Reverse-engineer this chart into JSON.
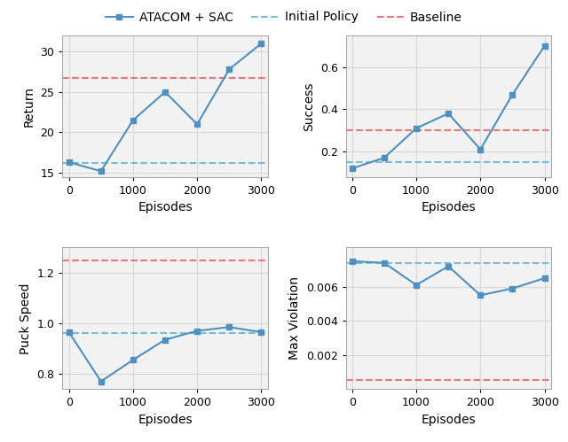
{
  "episodes": [
    0,
    500,
    1000,
    1500,
    2000,
    2500,
    3000
  ],
  "return_values": [
    16.3,
    15.2,
    21.5,
    25.0,
    21.0,
    27.8,
    31.0
  ],
  "return_initial_policy": 16.2,
  "return_baseline": 26.7,
  "return_ylim": [
    14.5,
    32
  ],
  "return_yticks": [
    15,
    20,
    25,
    30
  ],
  "success_values": [
    0.12,
    0.17,
    0.31,
    0.38,
    0.21,
    0.47,
    0.7
  ],
  "success_initial_policy": 0.15,
  "success_baseline": 0.3,
  "success_ylim": [
    0.08,
    0.75
  ],
  "success_yticks": [
    0.2,
    0.4,
    0.6
  ],
  "puck_speed_values": [
    0.965,
    0.77,
    0.855,
    0.935,
    0.97,
    0.985,
    0.965
  ],
  "puck_speed_initial_policy": 0.963,
  "puck_speed_baseline": 1.25,
  "puck_speed_ylim": [
    0.74,
    1.3
  ],
  "puck_speed_yticks": [
    0.8,
    1.0,
    1.2
  ],
  "max_violation_values": [
    0.0075,
    0.0074,
    0.0061,
    0.0072,
    0.0055,
    0.0059,
    0.0065
  ],
  "max_violation_initial_policy": 0.0074,
  "max_violation_baseline": 0.00055,
  "max_violation_ylim": [
    0.0,
    0.0083
  ],
  "max_violation_yticks": [
    0.002,
    0.004,
    0.006
  ],
  "x_ticks": [
    0,
    1000,
    2000,
    3000
  ],
  "x_lim": [
    -100,
    3100
  ],
  "line_color": "#4f90c0",
  "initial_policy_color": "#7bbcd5",
  "baseline_color": "#e87878",
  "marker": "s",
  "linewidth": 1.5,
  "markersize": 5,
  "label_fontsize": 10,
  "tick_fontsize": 9,
  "legend_fontsize": 10,
  "grid_color": "#d8d8d8",
  "background_color": "#f2f2f2",
  "spine_color": "#aaaaaa"
}
